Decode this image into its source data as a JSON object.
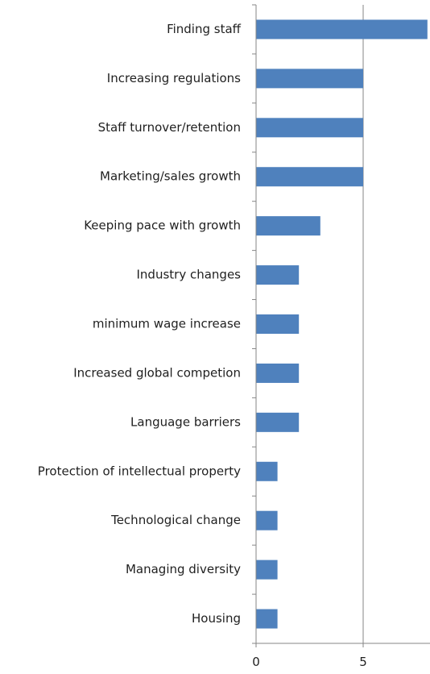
{
  "chart_data": {
    "type": "bar",
    "orientation": "horizontal",
    "title": "",
    "xlabel": "",
    "ylabel": "",
    "categories": [
      "Finding staff",
      "Increasing regulations",
      "Staff turnover/retention",
      "Marketing/sales growth",
      "Keeping pace with growth",
      "Industry changes",
      "minimum wage increase",
      "Increased global competion",
      "Language barriers",
      "Protection of intellectual property",
      "Technological change",
      "Managing diversity",
      "Housing"
    ],
    "values": [
      8,
      5,
      5,
      5,
      3,
      2,
      2,
      2,
      2,
      1,
      1,
      1,
      1
    ],
    "xlim": [
      0,
      8
    ],
    "x_ticks": [
      0,
      5
    ],
    "x_tick_labels": [
      "0",
      "5"
    ],
    "grid": "vertical gridlines at major ticks",
    "legend": "none",
    "bar_color": "#4f81bd",
    "axis_color": "#868686",
    "grid_color": "#868686"
  }
}
